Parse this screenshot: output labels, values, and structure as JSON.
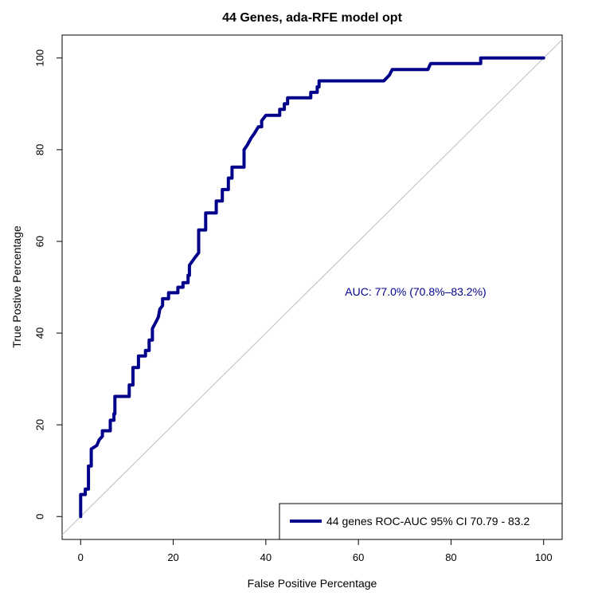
{
  "chart_data": {
    "type": "line",
    "title": "44 Genes, ada-RFE model opt",
    "xlabel": "False Positive Percentage",
    "ylabel": "True Postive Percentage",
    "xlim": [
      -4,
      104
    ],
    "ylim": [
      -5,
      105
    ],
    "x_ticks": [
      0,
      20,
      40,
      60,
      80,
      100
    ],
    "y_ticks": [
      0,
      20,
      40,
      60,
      80,
      100
    ],
    "grid": false,
    "legend_position": "bottom-right",
    "annotation": "AUC: 77.0% (70.8%–83.2%)",
    "reference_line": {
      "type": "diagonal",
      "color": "#bebebe"
    },
    "series": [
      {
        "name": "44 genes ROC-AUC 95% CI  70.79 - 83.2",
        "color": "#00008b",
        "points": [
          [
            0,
            0
          ],
          [
            0,
            4.8
          ],
          [
            1,
            4.8
          ],
          [
            1,
            6
          ],
          [
            1.7,
            6
          ],
          [
            1.7,
            11
          ],
          [
            2.3,
            11
          ],
          [
            2.3,
            14.7
          ],
          [
            3.5,
            15.5
          ],
          [
            4,
            16.7
          ],
          [
            4.7,
            17.5
          ],
          [
            4.7,
            18.7
          ],
          [
            6.4,
            18.7
          ],
          [
            6.4,
            21
          ],
          [
            7.2,
            21
          ],
          [
            7.2,
            22.4
          ],
          [
            7.4,
            22.4
          ],
          [
            7.4,
            26.2
          ],
          [
            10.5,
            26.2
          ],
          [
            10.5,
            28.7
          ],
          [
            11.3,
            28.7
          ],
          [
            11.3,
            32.5
          ],
          [
            12.5,
            32.5
          ],
          [
            12.5,
            35
          ],
          [
            14,
            35
          ],
          [
            14,
            36.2
          ],
          [
            14.8,
            36.2
          ],
          [
            14.8,
            38.5
          ],
          [
            15.5,
            38.5
          ],
          [
            15.5,
            41
          ],
          [
            16.3,
            42.5
          ],
          [
            16.8,
            43.5
          ],
          [
            17.1,
            45.2
          ],
          [
            17.7,
            46
          ],
          [
            17.7,
            47.5
          ],
          [
            19,
            47.5
          ],
          [
            19,
            48.8
          ],
          [
            21,
            48.8
          ],
          [
            21,
            50
          ],
          [
            22.1,
            50
          ],
          [
            22.1,
            51
          ],
          [
            23.2,
            51
          ],
          [
            23.2,
            52.6
          ],
          [
            23.5,
            52.6
          ],
          [
            23.5,
            54.8
          ],
          [
            24.7,
            56.5
          ],
          [
            25.5,
            57.5
          ],
          [
            25.5,
            62.5
          ],
          [
            27,
            62.5
          ],
          [
            27,
            66.2
          ],
          [
            29.3,
            66.2
          ],
          [
            29.3,
            68.8
          ],
          [
            30.6,
            68.8
          ],
          [
            30.6,
            71.3
          ],
          [
            31.9,
            71.3
          ],
          [
            31.9,
            73.8
          ],
          [
            32.7,
            73.8
          ],
          [
            32.7,
            76.2
          ],
          [
            35.3,
            76.2
          ],
          [
            35.3,
            80
          ],
          [
            36,
            81
          ],
          [
            36.8,
            82.5
          ],
          [
            37.5,
            83.5
          ],
          [
            38.4,
            85
          ],
          [
            39.1,
            85
          ],
          [
            39.1,
            86.3
          ],
          [
            40,
            87.5
          ],
          [
            43,
            87.5
          ],
          [
            43,
            88.8
          ],
          [
            44,
            88.8
          ],
          [
            44,
            90
          ],
          [
            44.7,
            90
          ],
          [
            44.7,
            91.3
          ],
          [
            49.7,
            91.3
          ],
          [
            49.7,
            92.5
          ],
          [
            51.1,
            92.5
          ],
          [
            51.1,
            93.7
          ],
          [
            51.5,
            93.7
          ],
          [
            51.5,
            95
          ],
          [
            65.5,
            95
          ],
          [
            66.7,
            96.3
          ],
          [
            67.3,
            97.5
          ],
          [
            75,
            97.5
          ],
          [
            75.6,
            98.8
          ],
          [
            86.4,
            98.8
          ],
          [
            86.4,
            100
          ],
          [
            100,
            100
          ]
        ]
      }
    ]
  }
}
